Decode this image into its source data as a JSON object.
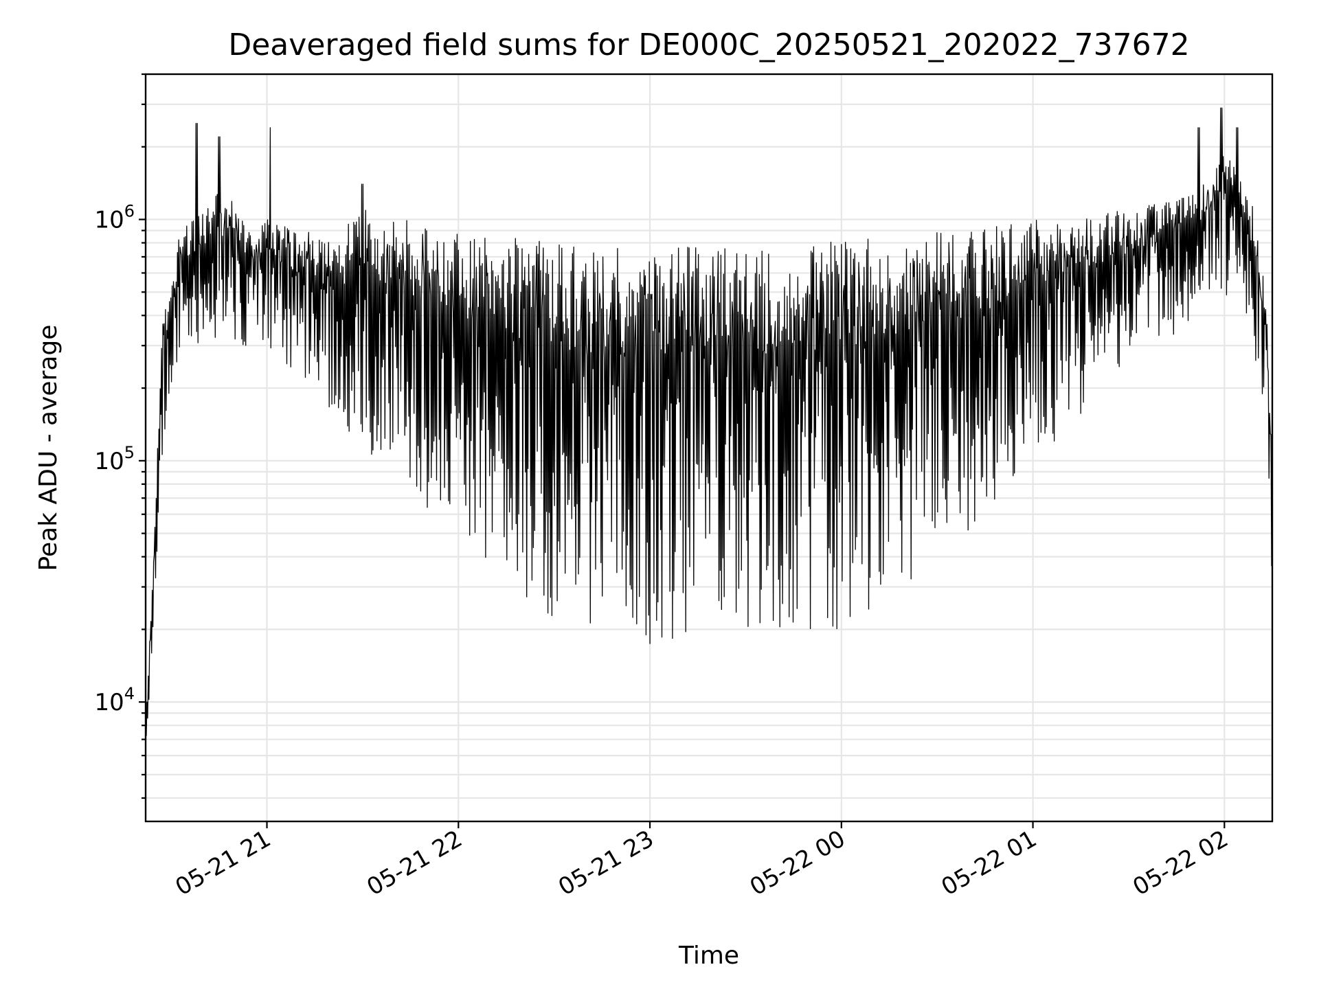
{
  "chart_data": {
    "type": "line",
    "title": "Deaveraged field sums for DE000C_20250521_202022_737672",
    "xlabel": "Time",
    "ylabel": "Peak ADU - average",
    "yscale": "log",
    "ylim": [
      3200,
      4000000
    ],
    "xlim": [
      "2025-05-21T20:22:00",
      "2025-05-22T02:15:00"
    ],
    "grid": true,
    "x_tick_labels": [
      "05-21 21",
      "05-21 22",
      "05-21 23",
      "05-22 00",
      "05-22 01",
      "05-22 02"
    ],
    "x_ticks": [
      "2025-05-21T21:00:00",
      "2025-05-21T22:00:00",
      "2025-05-21T23:00:00",
      "2025-05-22T00:00:00",
      "2025-05-22T01:00:00",
      "2025-05-22T02:00:00"
    ],
    "y_tick_labels": [
      {
        "base": "10",
        "exp": "4",
        "value": 10000
      },
      {
        "base": "10",
        "exp": "5",
        "value": 100000
      },
      {
        "base": "10",
        "exp": "6",
        "value": 1000000
      }
    ],
    "series": [
      {
        "color": "#000000",
        "upper_envelope": {
          "x": [
            "2025-05-21T20:22:00",
            "2025-05-21T20:25:00",
            "2025-05-21T20:27:00",
            "2025-05-21T20:30:00",
            "2025-05-21T20:33:00",
            "2025-05-21T20:40:00",
            "2025-05-21T20:45:00",
            "2025-05-21T20:50:00",
            "2025-05-21T20:55:00",
            "2025-05-21T21:00:00",
            "2025-05-21T21:05:00",
            "2025-05-21T21:10:00",
            "2025-05-21T21:20:00",
            "2025-05-21T21:30:00",
            "2025-05-21T21:40:00",
            "2025-05-21T21:50:00",
            "2025-05-21T22:00:00",
            "2025-05-21T22:15:00",
            "2025-05-21T22:30:00",
            "2025-05-21T22:45:00",
            "2025-05-21T23:00:00",
            "2025-05-21T23:15:00",
            "2025-05-21T23:30:00",
            "2025-05-21T23:45:00",
            "2025-05-22T00:00:00",
            "2025-05-22T00:15:00",
            "2025-05-22T00:30:00",
            "2025-05-22T00:45:00",
            "2025-05-22T01:00:00",
            "2025-05-22T01:15:00",
            "2025-05-22T01:30:00",
            "2025-05-22T01:40:00",
            "2025-05-22T01:50:00",
            "2025-05-22T01:55:00",
            "2025-05-22T02:00:00",
            "2025-05-22T02:05:00",
            "2025-05-22T02:10:00",
            "2025-05-22T02:13:00",
            "2025-05-22T02:15:00"
          ],
          "y": [
            9000,
            60000,
            350000,
            600000,
            900000,
            1100000,
            1300000,
            1200000,
            900000,
            1000000,
            950000,
            900000,
            850000,
            1100000,
            1050000,
            950000,
            900000,
            850000,
            800000,
            750000,
            800000,
            780000,
            750000,
            780000,
            820000,
            850000,
            900000,
            950000,
            1000000,
            1050000,
            1100000,
            1200000,
            1300000,
            1500000,
            2000000,
            1700000,
            1000000,
            500000,
            90000
          ]
        },
        "lower_envelope": {
          "x": [
            "2025-05-21T20:22:00",
            "2025-05-21T20:25:00",
            "2025-05-21T20:27:00",
            "2025-05-21T20:30:00",
            "2025-05-21T20:33:00",
            "2025-05-21T20:40:00",
            "2025-05-21T20:45:00",
            "2025-05-21T20:50:00",
            "2025-05-21T20:55:00",
            "2025-05-21T21:00:00",
            "2025-05-21T21:05:00",
            "2025-05-21T21:10:00",
            "2025-05-21T21:20:00",
            "2025-05-21T21:30:00",
            "2025-05-21T21:40:00",
            "2025-05-21T21:50:00",
            "2025-05-21T22:00:00",
            "2025-05-21T22:15:00",
            "2025-05-21T22:30:00",
            "2025-05-21T22:45:00",
            "2025-05-21T23:00:00",
            "2025-05-21T23:15:00",
            "2025-05-21T23:30:00",
            "2025-05-21T23:45:00",
            "2025-05-22T00:00:00",
            "2025-05-22T00:15:00",
            "2025-05-22T00:30:00",
            "2025-05-22T00:45:00",
            "2025-05-22T01:00:00",
            "2025-05-22T01:15:00",
            "2025-05-22T01:30:00",
            "2025-05-22T01:40:00",
            "2025-05-22T01:50:00",
            "2025-05-22T01:55:00",
            "2025-05-22T02:00:00",
            "2025-05-22T02:05:00",
            "2025-05-22T02:10:00",
            "2025-05-22T02:13:00",
            "2025-05-22T02:15:00"
          ],
          "y": [
            5000,
            30000,
            100000,
            200000,
            300000,
            300000,
            300000,
            300000,
            300000,
            300000,
            250000,
            200000,
            130000,
            110000,
            90000,
            60000,
            45000,
            30000,
            22000,
            18000,
            17000,
            18000,
            19000,
            20000,
            20000,
            28000,
            35000,
            50000,
            100000,
            150000,
            250000,
            300000,
            350000,
            450000,
            500000,
            400000,
            250000,
            120000,
            30000
          ]
        },
        "notable_peaks": [
          {
            "x": "2025-05-21T20:38:00",
            "y": 2500000
          },
          {
            "x": "2025-05-21T20:45:00",
            "y": 2200000
          },
          {
            "x": "2025-05-21T21:01:00",
            "y": 2400000
          },
          {
            "x": "2025-05-21T21:30:00",
            "y": 1400000
          },
          {
            "x": "2025-05-22T01:52:00",
            "y": 2400000
          },
          {
            "x": "2025-05-22T01:59:00",
            "y": 2900000
          },
          {
            "x": "2025-05-22T02:04:00",
            "y": 2400000
          }
        ]
      }
    ]
  }
}
